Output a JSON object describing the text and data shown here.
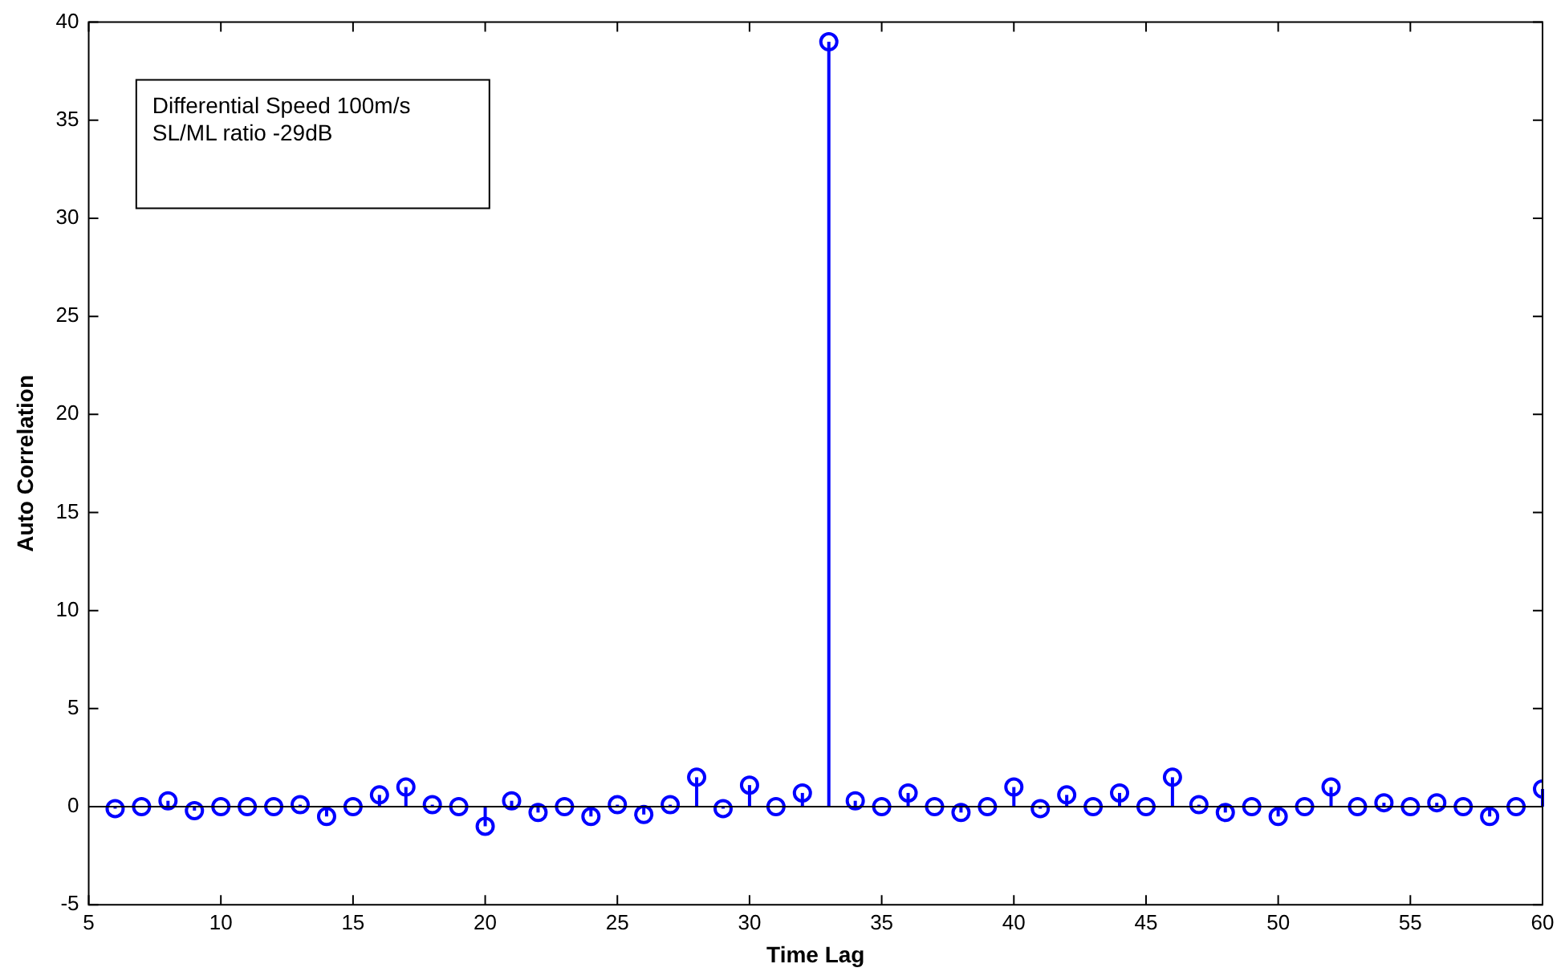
{
  "chart_data": {
    "type": "lollipop",
    "xlabel": "Time Lag",
    "ylabel": "Auto Correlation",
    "annotations": [
      "Differential Speed 100m/s",
      "SL/ML ratio -29dB"
    ],
    "x": [
      6,
      7,
      8,
      9,
      10,
      11,
      12,
      13,
      14,
      15,
      16,
      17,
      18,
      19,
      20,
      21,
      22,
      23,
      24,
      25,
      26,
      27,
      28,
      29,
      30,
      31,
      32,
      33,
      34,
      35,
      36,
      37,
      38,
      39,
      40,
      41,
      42,
      43,
      44,
      45,
      46,
      47,
      48,
      49,
      50,
      51,
      52,
      53,
      54,
      55,
      56,
      57,
      58,
      59,
      60
    ],
    "values": [
      -0.1,
      0,
      0.3,
      -0.2,
      0,
      0,
      0,
      0.1,
      -0.5,
      0,
      0.6,
      1.0,
      0.1,
      0,
      -1.0,
      0.3,
      -0.3,
      0,
      -0.5,
      0.1,
      -0.4,
      0.1,
      1.5,
      -0.1,
      1.1,
      0,
      0.7,
      39,
      0.3,
      0,
      0.7,
      0,
      -0.3,
      0,
      1.0,
      -0.1,
      0.6,
      0,
      0.7,
      0,
      1.5,
      0.1,
      -0.3,
      0,
      -0.5,
      0,
      1.0,
      0,
      0.2,
      0,
      0.2,
      0,
      -0.5,
      0,
      0.9
    ],
    "color": "#0000ff",
    "marker": "circle",
    "grid": false,
    "ref_lines": [
      {
        "axis": "y",
        "value": 0,
        "color": "#000000"
      }
    ],
    "xlim": [
      5,
      60
    ],
    "xticks": [
      5,
      10,
      15,
      20,
      25,
      30,
      35,
      40,
      45,
      50,
      55,
      60
    ],
    "ylim": [
      -5,
      40
    ],
    "yticks": [
      -5,
      0,
      5,
      10,
      15,
      20,
      25,
      30,
      35,
      40
    ]
  }
}
